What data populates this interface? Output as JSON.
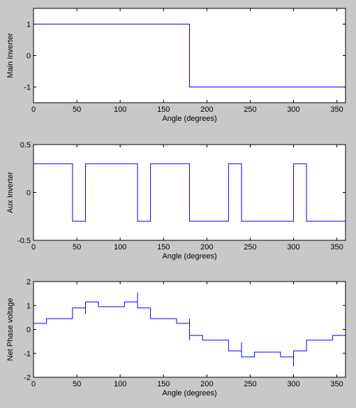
{
  "figure": {
    "background": "#c8c8c8",
    "line_color": "#0000ff"
  },
  "chart_data": [
    {
      "type": "line",
      "xlabel": "Angle (degrees)",
      "ylabel": "Main Inverter",
      "xlim": [
        0,
        360
      ],
      "ylim": [
        -1.5,
        1.5
      ],
      "xticks": [
        0,
        50,
        100,
        150,
        200,
        250,
        300,
        350
      ],
      "yticks": [
        -1,
        0,
        1
      ],
      "ytick_labels": [
        "-1",
        "0",
        "1"
      ],
      "grid": false,
      "series": [
        {
          "x": [
            0,
            180,
            180,
            360
          ],
          "y": [
            1,
            1,
            -1,
            -1
          ]
        }
      ]
    },
    {
      "type": "line",
      "xlabel": "Angle (degrees)",
      "ylabel": "Aux Inverter",
      "xlim": [
        0,
        360
      ],
      "ylim": [
        -0.5,
        0.5
      ],
      "xticks": [
        0,
        50,
        100,
        150,
        200,
        250,
        300,
        350
      ],
      "yticks": [
        -0.5,
        0,
        0.5
      ],
      "ytick_labels": [
        "-0.5",
        "0",
        "0.5"
      ],
      "grid": false,
      "series": [
        {
          "x": [
            0,
            45,
            45,
            60,
            60,
            120,
            120,
            135,
            135,
            180,
            180,
            225,
            225,
            240,
            240,
            300,
            300,
            315,
            315,
            360
          ],
          "y": [
            0.3,
            0.3,
            -0.3,
            -0.3,
            0.3,
            0.3,
            -0.3,
            -0.3,
            0.3,
            0.3,
            -0.3,
            -0.3,
            0.3,
            0.3,
            -0.3,
            -0.3,
            0.3,
            0.3,
            -0.3,
            -0.3
          ]
        }
      ]
    },
    {
      "type": "line",
      "xlabel": "Angle (degrees)",
      "ylabel": "Net Phase voltage",
      "xlim": [
        0,
        360
      ],
      "ylim": [
        -2,
        2
      ],
      "xticks": [
        0,
        50,
        100,
        150,
        200,
        250,
        300,
        350
      ],
      "yticks": [
        -2,
        -1,
        0,
        1,
        2
      ],
      "ytick_labels": [
        "-2",
        "-1",
        "0",
        "1",
        "2"
      ],
      "grid": false,
      "series": [
        {
          "x": [
            0,
            15,
            15,
            45,
            45,
            60,
            60,
            60,
            60,
            75,
            75,
            105,
            105,
            120,
            120,
            120,
            120,
            135,
            135,
            165,
            165,
            180,
            180,
            180,
            180,
            195,
            195,
            225,
            225,
            240,
            240,
            240,
            240,
            255,
            255,
            285,
            285,
            300,
            300,
            300,
            300,
            315,
            315,
            345,
            345,
            360
          ],
          "y": [
            0.25,
            0.25,
            0.45,
            0.45,
            0.9,
            0.9,
            0.65,
            1.15,
            1.15,
            1.15,
            0.95,
            0.95,
            1.15,
            1.15,
            1.55,
            0.9,
            0.9,
            0.9,
            0.45,
            0.45,
            0.25,
            0.25,
            0.45,
            -0.45,
            -0.25,
            -0.25,
            -0.45,
            -0.45,
            -0.9,
            -0.9,
            -0.55,
            -1.15,
            -1.15,
            -1.15,
            -0.95,
            -0.95,
            -1.15,
            -1.15,
            -1.55,
            -0.9,
            -0.9,
            -0.9,
            -0.45,
            -0.45,
            -0.25,
            -0.25
          ]
        }
      ]
    }
  ]
}
